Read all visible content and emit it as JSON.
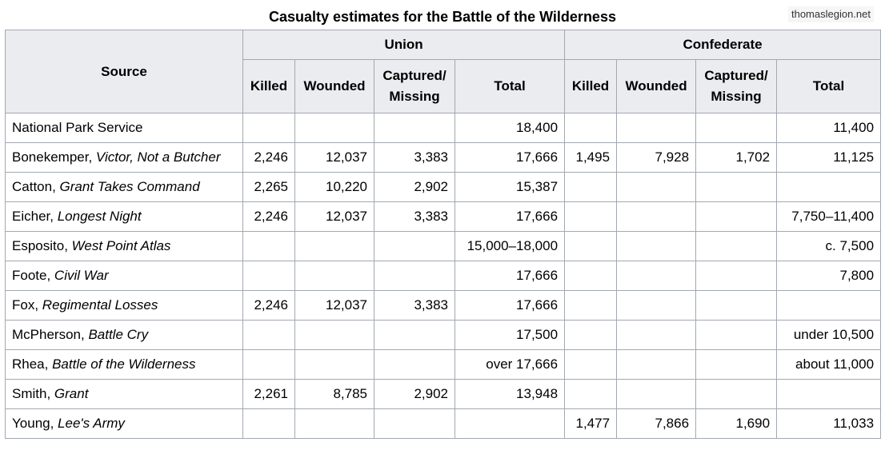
{
  "title": "Casualty estimates for the Battle of the Wilderness",
  "watermark": "thomaslegion.net",
  "headers": {
    "source": "Source",
    "union": "Union",
    "confederate": "Confederate",
    "killed": "Killed",
    "wounded": "Wounded",
    "captured_line1": "Captured/",
    "captured_line2": "Missing",
    "total": "Total"
  },
  "rows": [
    {
      "author": "National Park Service",
      "work": "",
      "u_killed": "",
      "u_wounded": "",
      "u_captured": "",
      "u_total": "18,400",
      "c_killed": "",
      "c_wounded": "",
      "c_captured": "",
      "c_total": "11,400"
    },
    {
      "author": "Bonekemper, ",
      "work": "Victor, Not a Butcher",
      "u_killed": "2,246",
      "u_wounded": "12,037",
      "u_captured": "3,383",
      "u_total": "17,666",
      "c_killed": "1,495",
      "c_wounded": "7,928",
      "c_captured": "1,702",
      "c_total": "11,125"
    },
    {
      "author": "Catton, ",
      "work": "Grant Takes Command",
      "u_killed": "2,265",
      "u_wounded": "10,220",
      "u_captured": "2,902",
      "u_total": "15,387",
      "c_killed": "",
      "c_wounded": "",
      "c_captured": "",
      "c_total": ""
    },
    {
      "author": "Eicher, ",
      "work": "Longest Night",
      "u_killed": "2,246",
      "u_wounded": "12,037",
      "u_captured": "3,383",
      "u_total": "17,666",
      "c_killed": "",
      "c_wounded": "",
      "c_captured": "",
      "c_total": "7,750–11,400"
    },
    {
      "author": "Esposito, ",
      "work": "West Point Atlas",
      "u_killed": "",
      "u_wounded": "",
      "u_captured": "",
      "u_total": "15,000–18,000",
      "c_killed": "",
      "c_wounded": "",
      "c_captured": "",
      "c_total": "c. 7,500"
    },
    {
      "author": "Foote, ",
      "work": "Civil War",
      "u_killed": "",
      "u_wounded": "",
      "u_captured": "",
      "u_total": "17,666",
      "c_killed": "",
      "c_wounded": "",
      "c_captured": "",
      "c_total": "7,800"
    },
    {
      "author": "Fox, ",
      "work": "Regimental Losses",
      "u_killed": "2,246",
      "u_wounded": "12,037",
      "u_captured": "3,383",
      "u_total": "17,666",
      "c_killed": "",
      "c_wounded": "",
      "c_captured": "",
      "c_total": ""
    },
    {
      "author": "McPherson, ",
      "work": "Battle Cry",
      "u_killed": "",
      "u_wounded": "",
      "u_captured": "",
      "u_total": "17,500",
      "c_killed": "",
      "c_wounded": "",
      "c_captured": "",
      "c_total": "under 10,500"
    },
    {
      "author": "Rhea, ",
      "work": "Battle of the Wilderness",
      "u_killed": "",
      "u_wounded": "",
      "u_captured": "",
      "u_total": "over 17,666",
      "c_killed": "",
      "c_wounded": "",
      "c_captured": "",
      "c_total": "about 11,000"
    },
    {
      "author": "Smith, ",
      "work": "Grant",
      "u_killed": "2,261",
      "u_wounded": "8,785",
      "u_captured": "2,902",
      "u_total": "13,948",
      "c_killed": "",
      "c_wounded": "",
      "c_captured": "",
      "c_total": ""
    },
    {
      "author": "Young, ",
      "work": "Lee's Army",
      "u_killed": "",
      "u_wounded": "",
      "u_captured": "",
      "u_total": "",
      "c_killed": "1,477",
      "c_wounded": "7,866",
      "c_captured": "1,690",
      "c_total": "11,033"
    }
  ]
}
